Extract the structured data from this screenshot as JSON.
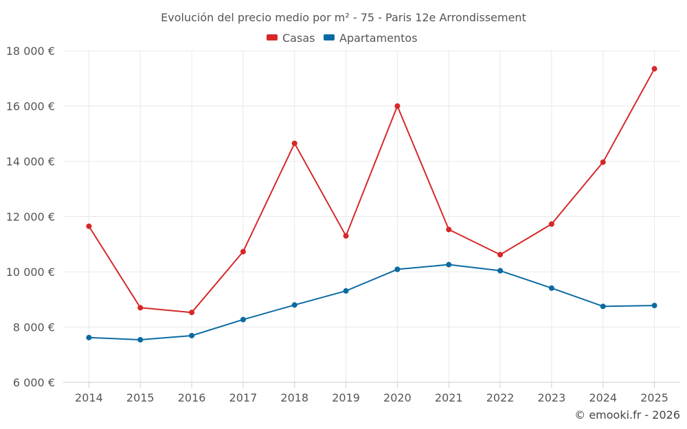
{
  "chart_data": {
    "type": "line",
    "title": "Evolución del precio medio por m² - 75 - Paris 12e Arrondissement",
    "xlabel": "",
    "ylabel": "",
    "categories": [
      "2014",
      "2015",
      "2016",
      "2017",
      "2018",
      "2019",
      "2020",
      "2021",
      "2022",
      "2023",
      "2024",
      "2025"
    ],
    "ylim": [
      6000,
      18000
    ],
    "yticks": [
      6000,
      8000,
      10000,
      12000,
      14000,
      16000,
      18000
    ],
    "ytick_labels": [
      "6 000 €",
      "8 000 €",
      "10 000 €",
      "12 000 €",
      "14 000 €",
      "16 000 €",
      "18 000 €"
    ],
    "grid": true,
    "legend_position": "top-center",
    "series": [
      {
        "name": "Casas",
        "color": "#d62728",
        "values": [
          11650,
          8700,
          8530,
          10730,
          14650,
          11300,
          16000,
          11530,
          10620,
          11730,
          13970,
          17350
        ]
      },
      {
        "name": "Apartamentos",
        "color": "#0b6aa2",
        "values": [
          7620,
          7540,
          7690,
          8270,
          8800,
          9310,
          10090,
          10260,
          10040,
          9410,
          8750,
          8780
        ]
      }
    ],
    "credit": "© emooki.fr - 2026"
  }
}
